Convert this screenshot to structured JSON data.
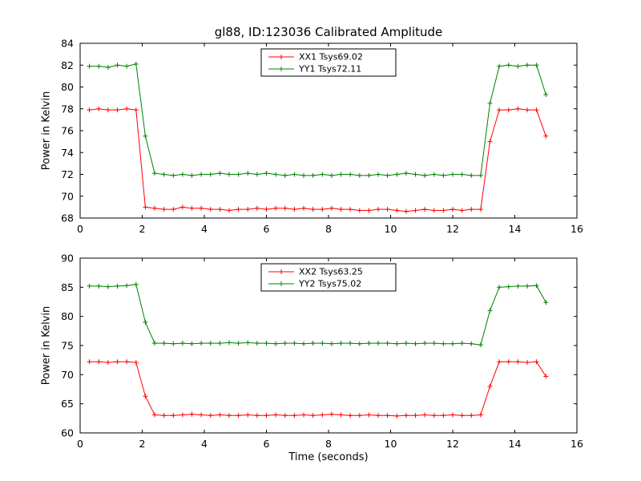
{
  "chart_data": [
    {
      "type": "line",
      "title": "gl88, ID:123036 Calibrated Amplitude",
      "xlabel": "",
      "ylabel": "Power in Kelvin",
      "xlim": [
        0,
        16
      ],
      "ylim": [
        68,
        84
      ],
      "xticks": [
        0,
        2,
        4,
        6,
        8,
        10,
        12,
        14,
        16
      ],
      "yticks": [
        68,
        70,
        72,
        74,
        76,
        78,
        80,
        82,
        84
      ],
      "grid": false,
      "legend_position": "upper center",
      "x": [
        0.3,
        0.6,
        0.9,
        1.2,
        1.5,
        1.8,
        2.1,
        2.4,
        2.7,
        3.0,
        3.3,
        3.6,
        3.9,
        4.2,
        4.5,
        4.8,
        5.1,
        5.4,
        5.7,
        6.0,
        6.3,
        6.6,
        6.9,
        7.2,
        7.5,
        7.8,
        8.1,
        8.4,
        8.7,
        9.0,
        9.3,
        9.6,
        9.9,
        10.2,
        10.5,
        10.8,
        11.1,
        11.4,
        11.7,
        12.0,
        12.3,
        12.6,
        12.9,
        13.2,
        13.5,
        13.8,
        14.1,
        14.4,
        14.7,
        15.0
      ],
      "series": [
        {
          "name": "XX1 Tsys69.02",
          "color": "#ff0000",
          "marker": "+",
          "values": [
            77.9,
            78.0,
            77.9,
            77.9,
            78.0,
            77.9,
            69.0,
            68.9,
            68.8,
            68.8,
            69.0,
            68.9,
            68.9,
            68.8,
            68.8,
            68.7,
            68.8,
            68.8,
            68.9,
            68.8,
            68.9,
            68.9,
            68.8,
            68.9,
            68.8,
            68.8,
            68.9,
            68.8,
            68.8,
            68.7,
            68.7,
            68.8,
            68.8,
            68.7,
            68.6,
            68.7,
            68.8,
            68.7,
            68.7,
            68.8,
            68.7,
            68.8,
            68.8,
            75.0,
            77.9,
            77.9,
            78.0,
            77.9,
            77.9,
            75.5
          ]
        },
        {
          "name": "YY1 Tsys72.11",
          "color": "#008000",
          "marker": "+",
          "values": [
            81.9,
            81.9,
            81.8,
            82.0,
            81.9,
            82.1,
            75.5,
            72.1,
            72.0,
            71.9,
            72.0,
            71.9,
            72.0,
            72.0,
            72.1,
            72.0,
            72.0,
            72.1,
            72.0,
            72.1,
            72.0,
            71.9,
            72.0,
            71.9,
            71.9,
            72.0,
            71.9,
            72.0,
            72.0,
            71.9,
            71.9,
            72.0,
            71.9,
            72.0,
            72.1,
            72.0,
            71.9,
            72.0,
            71.9,
            72.0,
            72.0,
            71.9,
            71.9,
            78.5,
            81.9,
            82.0,
            81.9,
            82.0,
            82.0,
            79.3
          ]
        }
      ]
    },
    {
      "type": "line",
      "title": "",
      "xlabel": "Time (seconds)",
      "ylabel": "Power in Kelvin",
      "xlim": [
        0,
        16
      ],
      "ylim": [
        60,
        90
      ],
      "xticks": [
        0,
        2,
        4,
        6,
        8,
        10,
        12,
        14,
        16
      ],
      "yticks": [
        60,
        65,
        70,
        75,
        80,
        85,
        90
      ],
      "grid": false,
      "legend_position": "upper center",
      "x": [
        0.3,
        0.6,
        0.9,
        1.2,
        1.5,
        1.8,
        2.1,
        2.4,
        2.7,
        3.0,
        3.3,
        3.6,
        3.9,
        4.2,
        4.5,
        4.8,
        5.1,
        5.4,
        5.7,
        6.0,
        6.3,
        6.6,
        6.9,
        7.2,
        7.5,
        7.8,
        8.1,
        8.4,
        8.7,
        9.0,
        9.3,
        9.6,
        9.9,
        10.2,
        10.5,
        10.8,
        11.1,
        11.4,
        11.7,
        12.0,
        12.3,
        12.6,
        12.9,
        13.2,
        13.5,
        13.8,
        14.1,
        14.4,
        14.7,
        15.0
      ],
      "series": [
        {
          "name": "XX2 Tsys63.25",
          "color": "#ff0000",
          "marker": "+",
          "values": [
            72.2,
            72.2,
            72.1,
            72.2,
            72.2,
            72.1,
            66.3,
            63.1,
            63.0,
            63.0,
            63.1,
            63.2,
            63.1,
            63.0,
            63.1,
            63.0,
            63.0,
            63.1,
            63.0,
            63.0,
            63.1,
            63.0,
            63.0,
            63.1,
            63.0,
            63.1,
            63.2,
            63.1,
            63.0,
            63.0,
            63.1,
            63.0,
            63.0,
            62.9,
            63.0,
            63.0,
            63.1,
            63.0,
            63.0,
            63.1,
            63.0,
            63.0,
            63.1,
            68.0,
            72.2,
            72.2,
            72.2,
            72.1,
            72.2,
            69.7
          ]
        },
        {
          "name": "YY2 Tsys75.02",
          "color": "#008000",
          "marker": "+",
          "values": [
            85.2,
            85.2,
            85.1,
            85.2,
            85.3,
            85.5,
            79.0,
            75.4,
            75.4,
            75.3,
            75.4,
            75.3,
            75.4,
            75.4,
            75.4,
            75.5,
            75.4,
            75.5,
            75.4,
            75.4,
            75.3,
            75.4,
            75.4,
            75.3,
            75.4,
            75.4,
            75.3,
            75.4,
            75.4,
            75.3,
            75.4,
            75.4,
            75.4,
            75.3,
            75.4,
            75.3,
            75.4,
            75.4,
            75.3,
            75.3,
            75.4,
            75.3,
            75.1,
            81.0,
            85.0,
            85.1,
            85.2,
            85.2,
            85.3,
            82.4
          ]
        }
      ]
    }
  ]
}
